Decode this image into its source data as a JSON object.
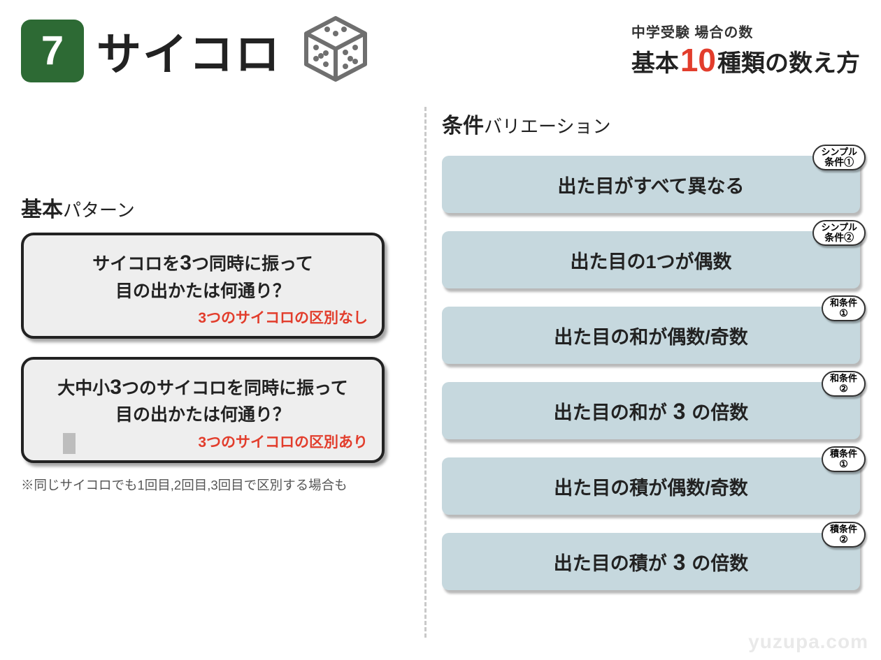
{
  "header": {
    "badge_number": "7",
    "title": "サイコロ",
    "badge_bg": "#2d6a34",
    "subtitle_small": "中学受験 場合の数",
    "subtitle_big_pre": "基本",
    "subtitle_big_num": "10",
    "subtitle_big_post": "種類の数え方",
    "accent_color": "#e23d2c"
  },
  "left": {
    "heading_bold": "基本",
    "heading_thin": "パターン",
    "patterns": [
      {
        "line1_pre": "サイコロを",
        "line1_big": "3",
        "line1_post": "つ同時に振って",
        "line2": "目の出かたは何通り？",
        "note": "3つのサイコロの区別なし"
      },
      {
        "line1_pre": "大中小",
        "line1_big": "3",
        "line1_post": "つのサイコロを同時に振って",
        "line2": "目の出かたは何通り？",
        "note": "3つのサイコロの区別あり"
      }
    ],
    "footnote": "※同じサイコロでも1回目,2回目,3回目で区別する場合も"
  },
  "right": {
    "heading_bold": "条件",
    "heading_thin": "バリエーション",
    "item_bg": "#c6d8de",
    "items": [
      {
        "text_pre": "出た目がすべて異なる",
        "big": "",
        "text_post": "",
        "tag_line1": "シンプル",
        "tag_line2": "条件①"
      },
      {
        "text_pre": "出た目の1つが偶数",
        "big": "",
        "text_post": "",
        "tag_line1": "シンプル",
        "tag_line2": "条件②"
      },
      {
        "text_pre": "出た目の和が偶数/奇数",
        "big": "",
        "text_post": "",
        "tag_line1": "和条件",
        "tag_line2": "①"
      },
      {
        "text_pre": "出た目の和が",
        "big": "3",
        "text_post": "の倍数",
        "tag_line1": "和条件",
        "tag_line2": "②"
      },
      {
        "text_pre": "出た目の積が偶数/奇数",
        "big": "",
        "text_post": "",
        "tag_line1": "積条件",
        "tag_line2": "①"
      },
      {
        "text_pre": "出た目の積が",
        "big": "3",
        "text_post": "の倍数",
        "tag_line1": "積条件",
        "tag_line2": "②"
      }
    ]
  },
  "watermark": "yuzupa.com"
}
